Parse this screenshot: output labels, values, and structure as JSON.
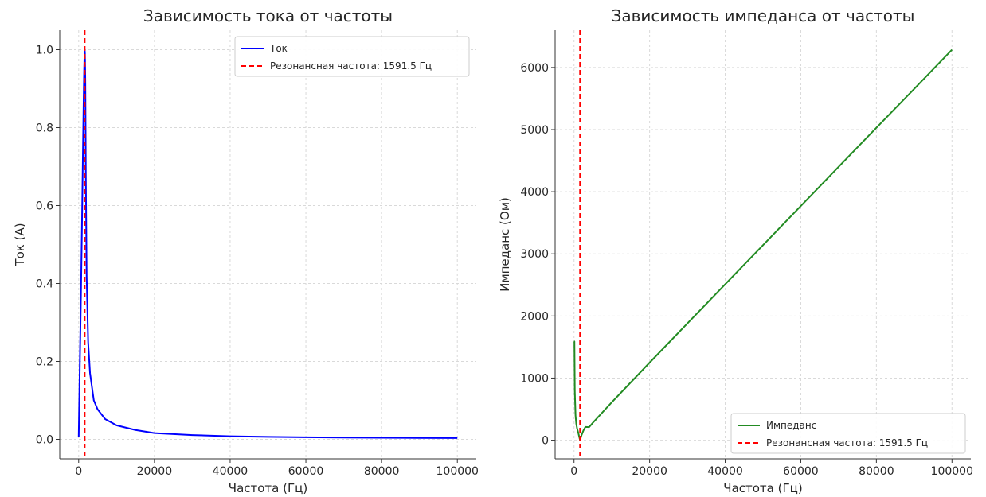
{
  "chart_data": [
    {
      "type": "line",
      "title": "Зависимость тока от частоты",
      "xlabel": "Частота (Гц)",
      "ylabel": "Ток (A)",
      "xlim": [
        -5000,
        105000
      ],
      "ylim": [
        -0.05,
        1.05
      ],
      "xticks": [
        0,
        20000,
        40000,
        60000,
        80000,
        100000
      ],
      "yticks": [
        0.0,
        0.2,
        0.4,
        0.6,
        0.8,
        1.0
      ],
      "ytick_format": "fixed1",
      "grid": true,
      "legend_position": "top-right",
      "series": [
        {
          "name": "Ток",
          "color": "#0000ff",
          "style": "solid",
          "x": [
            10,
            100,
            300,
            600,
            900,
            1100,
            1300,
            1450,
            1550,
            1591.5,
            1650,
            1750,
            1900,
            2100,
            2500,
            3000,
            4000,
            5000,
            7000,
            10000,
            15000,
            20000,
            30000,
            40000,
            50000,
            60000,
            70000,
            80000,
            90000,
            100000
          ],
          "y": [
            0.006,
            0.063,
            0.19,
            0.37,
            0.57,
            0.72,
            0.86,
            0.95,
            0.99,
            1.0,
            0.99,
            0.92,
            0.66,
            0.42,
            0.25,
            0.17,
            0.1,
            0.077,
            0.052,
            0.036,
            0.024,
            0.016,
            0.011,
            0.008,
            0.0065,
            0.0054,
            0.0046,
            0.004,
            0.0036,
            0.0032
          ]
        },
        {
          "name": "Резонансная частота: 1591.5 Гц",
          "color": "#ff0000",
          "style": "dashed",
          "vline_x": 1591.5
        }
      ]
    },
    {
      "type": "line",
      "title": "Зависимость импеданса от частоты",
      "xlabel": "Частота (Гц)",
      "ylabel": "Импеданс (Ом)",
      "xlim": [
        -5000,
        105000
      ],
      "ylim": [
        -300,
        6600
      ],
      "xticks": [
        0,
        20000,
        40000,
        60000,
        80000,
        100000
      ],
      "yticks": [
        0,
        1000,
        2000,
        3000,
        4000,
        5000,
        6000
      ],
      "ytick_format": "int",
      "grid": true,
      "legend_position": "bottom-right",
      "series": [
        {
          "name": "Импеданс",
          "color": "#228b22",
          "style": "solid",
          "x": [
            10,
            100,
            200,
            400,
            600,
            800,
            1000,
            1200,
            1400,
            1591.5,
            1800,
            2000,
            2500,
            3000,
            4000,
            5000,
            10000,
            20000,
            30000,
            40000,
            50000,
            60000,
            70000,
            80000,
            90000,
            100000
          ],
          "y": [
            1590,
            1590,
            795,
            397,
            262,
            192,
            148,
            102,
            48,
            1,
            45,
            83,
            157,
            213,
            210,
            282,
            611,
            1249,
            1880,
            2510,
            3140,
            3770,
            4400,
            5030,
            5655,
            6285
          ]
        },
        {
          "name": "Резонансная частота: 1591.5 Гц",
          "color": "#ff0000",
          "style": "dashed",
          "vline_x": 1591.5
        }
      ]
    }
  ]
}
